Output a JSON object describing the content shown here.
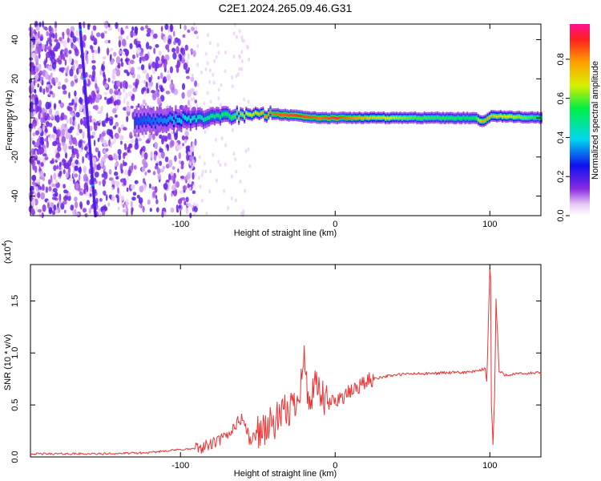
{
  "title": "C2E1.2024.265.09.46.G31",
  "chart_data": [
    {
      "type": "heatmap",
      "xlabel": "Height of straight line (km)",
      "ylabel": "Frequency (Hz)",
      "xlim": [
        -197,
        133
      ],
      "ylim": [
        -50,
        48
      ],
      "x_ticks": [
        -100,
        0,
        100
      ],
      "x_tick_labels": [
        "-100",
        "0",
        "100"
      ],
      "y_ticks": [
        -40,
        -20,
        0,
        20,
        40
      ],
      "y_tick_labels": [
        "-40",
        "-20",
        "0",
        "20",
        "40"
      ],
      "colorbar": {
        "label": "Normalized spectral amplitude",
        "range": [
          0,
          0.98
        ],
        "ticks": [
          0.0,
          0.2,
          0.4,
          0.6,
          0.8
        ],
        "tick_labels": [
          "0.0",
          "0.2",
          "0.4",
          "0.6",
          "0.8"
        ]
      },
      "features": {
        "noise_region_x": [
          -197,
          -90
        ],
        "ridge": {
          "x": [
            -130,
            -110,
            -90,
            -70,
            -55,
            -40,
            -25,
            -10,
            0,
            20,
            50,
            90,
            95,
            100,
            133
          ],
          "freq": [
            -2,
            -1,
            0,
            1,
            2,
            2,
            1,
            0,
            0,
            0,
            0,
            0,
            -2,
            1,
            0
          ],
          "halfwidth": [
            7,
            6,
            5,
            4,
            3,
            3,
            3,
            3,
            3,
            3,
            3,
            3,
            3,
            3,
            3
          ],
          "amplitude": [
            0.3,
            0.35,
            0.45,
            0.55,
            0.7,
            0.85,
            0.9,
            0.85,
            0.9,
            0.75,
            0.6,
            0.55,
            0.8,
            0.75,
            0.55
          ]
        },
        "streak": {
          "x_top": -165,
          "freq_top": 48,
          "x_bottom": -155,
          "freq_bottom": -50,
          "amplitude": 0.2
        }
      }
    },
    {
      "type": "line",
      "xlabel": "Height of straight line (km)",
      "ylabel": "SNR (10 * v/v)",
      "y_multiplier": "(x10",
      "y_multiplier_exp": "4",
      "xlim": [
        -197,
        133
      ],
      "ylim": [
        0,
        1.85
      ],
      "x_ticks": [
        -100,
        0,
        100
      ],
      "x_tick_labels": [
        "-100",
        "0",
        "100"
      ],
      "y_ticks": [
        0.0,
        0.5,
        1.0,
        1.5
      ],
      "y_tick_labels": [
        "0.0",
        "0.5",
        "1.0",
        "1.5"
      ],
      "series": [
        {
          "color": "#ee3333",
          "x": [
            -197,
            -150,
            -120,
            -110,
            -90,
            -80,
            -70,
            -65,
            -60,
            -57,
            -55,
            -52,
            -50,
            -45,
            -40,
            -35,
            -30,
            -25,
            -22,
            -20,
            -18,
            -15,
            -12,
            -10,
            -5,
            0,
            5,
            10,
            15,
            20,
            25,
            30,
            40,
            50,
            60,
            70,
            80,
            90,
            95,
            97,
            98,
            99,
            100,
            100.5,
            101,
            102,
            103,
            104,
            106,
            110,
            120,
            133
          ],
          "values": [
            0.03,
            0.03,
            0.04,
            0.06,
            0.08,
            0.12,
            0.2,
            0.3,
            0.38,
            0.25,
            0.15,
            0.2,
            0.25,
            0.28,
            0.32,
            0.38,
            0.45,
            0.55,
            0.75,
            0.95,
            0.6,
            0.55,
            0.7,
            0.6,
            0.5,
            0.55,
            0.58,
            0.62,
            0.68,
            0.72,
            0.75,
            0.77,
            0.79,
            0.8,
            0.8,
            0.81,
            0.81,
            0.82,
            0.84,
            0.85,
            0.7,
            1.3,
            1.82,
            1.7,
            0.5,
            0.12,
            0.55,
            1.5,
            0.82,
            0.79,
            0.8,
            0.81
          ]
        }
      ]
    }
  ]
}
